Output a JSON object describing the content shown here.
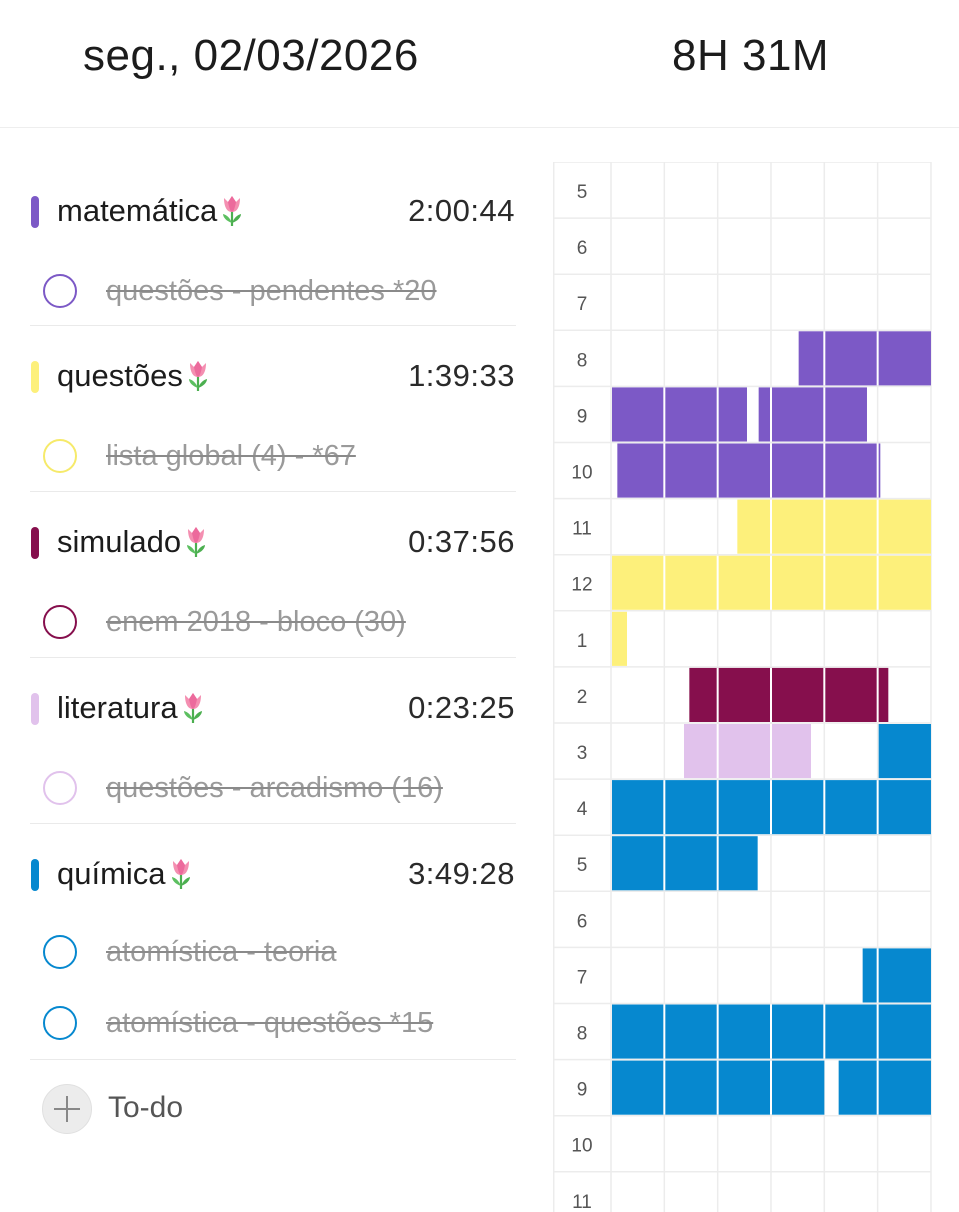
{
  "header": {
    "date": "seg., 02/03/2026",
    "total": "8H 31M"
  },
  "subjects": [
    {
      "name": "matemática",
      "time": "2:00:44",
      "color": "#7c59c6",
      "tasks": [
        {
          "label": "questões - pendentes *20",
          "done": true
        }
      ]
    },
    {
      "name": "questões",
      "time": "1:39:33",
      "color": "#fdf07b",
      "tasks": [
        {
          "label": "lista global (4) - *67",
          "done": true
        }
      ]
    },
    {
      "name": "simulado",
      "time": "0:37:56",
      "color": "#860f4d",
      "tasks": [
        {
          "label": "enem 2018 - bloco  (30)",
          "done": true
        }
      ]
    },
    {
      "name": "literatura",
      "time": "0:23:25",
      "color": "#e1c2ec",
      "tasks": [
        {
          "label": "questões - arcadismo (16)",
          "done": true
        }
      ]
    },
    {
      "name": "química",
      "time": "3:49:28",
      "color": "#0688cf",
      "tasks": [
        {
          "label": "atomística - teoria",
          "done": true
        },
        {
          "label": "atomística - questões *15",
          "done": true
        }
      ]
    }
  ],
  "todo": {
    "label": "To-do"
  },
  "timeline": {
    "hour_labels": [
      "5",
      "6",
      "7",
      "8",
      "9",
      "10",
      "11",
      "12",
      "1",
      "2",
      "3",
      "4",
      "5",
      "6",
      "7",
      "8",
      "9",
      "10",
      "11"
    ],
    "blocks": [
      {
        "row": 3,
        "start": 3.5,
        "end": 6,
        "color": "#7c59c6"
      },
      {
        "row": 4,
        "start": 0,
        "end": 2.55,
        "color": "#7c59c6"
      },
      {
        "row": 4,
        "start": 2.75,
        "end": 4.8,
        "color": "#7c59c6"
      },
      {
        "row": 5,
        "start": 0.1,
        "end": 5.05,
        "color": "#7c59c6"
      },
      {
        "row": 6,
        "start": 2.35,
        "end": 6,
        "color": "#fdf07b"
      },
      {
        "row": 7,
        "start": 0,
        "end": 6,
        "color": "#fdf07b"
      },
      {
        "row": 8,
        "start": 0,
        "end": 0.3,
        "color": "#fdf07b"
      },
      {
        "row": 9,
        "start": 1.45,
        "end": 5.2,
        "color": "#860f4d"
      },
      {
        "row": 10,
        "start": 1.35,
        "end": 3.75,
        "color": "#e1c2ec"
      },
      {
        "row": 10,
        "start": 5.0,
        "end": 6,
        "color": "#0688cf"
      },
      {
        "row": 11,
        "start": 0,
        "end": 6,
        "color": "#0688cf"
      },
      {
        "row": 12,
        "start": 0,
        "end": 2.75,
        "color": "#0688cf"
      },
      {
        "row": 14,
        "start": 4.7,
        "end": 6,
        "color": "#0688cf"
      },
      {
        "row": 15,
        "start": 0,
        "end": 6,
        "color": "#0688cf"
      },
      {
        "row": 16,
        "start": 0,
        "end": 4.0,
        "color": "#0688cf"
      },
      {
        "row": 16,
        "start": 4.25,
        "end": 6,
        "color": "#0688cf"
      }
    ]
  }
}
